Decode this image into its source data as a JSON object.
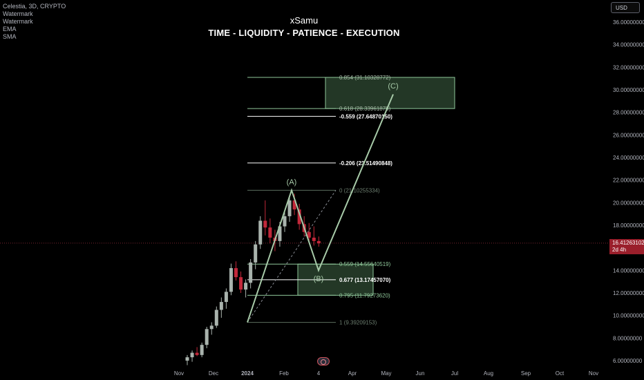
{
  "legend": {
    "symbol": "Celestia, 3D, CRYPTO",
    "items": [
      "Watermark",
      "Watermark",
      "EMA",
      "SMA"
    ]
  },
  "header": {
    "author": "xSamu",
    "headline": "TIME - LIQUIDITY - PATIENCE - EXECUTION"
  },
  "currency_button": "USD",
  "last_price": {
    "value": "16.41263102",
    "countdown": "2d 4h"
  },
  "colors": {
    "background": "#000000",
    "up": "#a9b3ad",
    "down": "#c2283a",
    "fib": "#8fc79a",
    "zone_fill": "#2f4a33",
    "price_tag": "#9a1f2b"
  },
  "chart_data": {
    "type": "candlestick",
    "x_ticks": [
      "Nov",
      "Dec",
      "2024",
      "Feb",
      "4",
      "Apr",
      "May",
      "Jun",
      "Jul",
      "Aug",
      "Sep",
      "Oct",
      "Nov"
    ],
    "y_ticks": [
      "6.00000000",
      "8.00000000",
      "10.00000000",
      "12.00000000",
      "14.00000000",
      "16.00000000",
      "18.00000000",
      "20.00000000",
      "22.00000000",
      "24.00000000",
      "26.00000000",
      "28.00000000",
      "30.00000000",
      "32.00000000",
      "34.00000000",
      "36.00000000"
    ],
    "ylim": [
      5.5,
      36.6
    ],
    "candles_ohlc": [
      [
        6.0,
        6.5,
        5.6,
        6.3
      ],
      [
        6.3,
        6.9,
        5.9,
        6.7
      ],
      [
        6.7,
        7.2,
        6.4,
        6.5
      ],
      [
        6.5,
        7.6,
        6.3,
        7.4
      ],
      [
        7.4,
        9.0,
        7.1,
        8.8
      ],
      [
        8.8,
        9.4,
        8.3,
        9.1
      ],
      [
        9.1,
        10.8,
        8.9,
        10.5
      ],
      [
        10.5,
        11.6,
        9.8,
        11.2
      ],
      [
        11.2,
        12.4,
        10.6,
        12.1
      ],
      [
        12.1,
        14.6,
        11.8,
        14.2
      ],
      [
        14.2,
        14.8,
        13.1,
        13.4
      ],
      [
        13.4,
        13.9,
        12.0,
        12.3
      ],
      [
        12.3,
        13.2,
        11.6,
        12.9
      ],
      [
        12.9,
        15.0,
        12.4,
        14.7
      ],
      [
        14.7,
        16.6,
        14.1,
        16.3
      ],
      [
        16.3,
        18.8,
        15.9,
        18.4
      ],
      [
        18.4,
        20.2,
        17.1,
        17.8
      ],
      [
        17.8,
        18.6,
        16.4,
        16.9
      ],
      [
        16.9,
        17.6,
        15.7,
        16.6
      ],
      [
        16.6,
        18.3,
        16.1,
        17.9
      ],
      [
        17.9,
        19.2,
        17.4,
        18.8
      ],
      [
        18.8,
        20.5,
        18.3,
        20.2
      ],
      [
        20.2,
        20.8,
        18.9,
        19.4
      ],
      [
        19.4,
        19.9,
        17.6,
        18.1
      ],
      [
        18.1,
        18.8,
        17.0,
        17.4
      ],
      [
        17.4,
        18.2,
        16.4,
        16.9
      ],
      [
        16.9,
        17.9,
        16.2,
        16.6
      ],
      [
        16.6,
        17.0,
        16.1,
        16.4
      ]
    ],
    "annotations": {
      "waves": [
        {
          "label": "(A)",
          "y": 21.1
        },
        {
          "label": "(B)",
          "y": 14.0
        },
        {
          "label": "(C)",
          "y": 29.6
        }
      ],
      "fib_levels": [
        {
          "label": "0.854 (31.10328772)",
          "value": 31.10328772
        },
        {
          "label": "0.618 (28.33961878)",
          "value": 28.33961878
        },
        {
          "label": "-0.559 (27.64870150)",
          "value": 27.6487015
        },
        {
          "label": "-0.206 (23.51490848)",
          "value": 23.51490848
        },
        {
          "label": "0 (21.10255334)",
          "value": 21.10255334
        },
        {
          "label": "0.559 (14.55640519)",
          "value": 14.55640519
        },
        {
          "label": "0.677 (13.17457070)",
          "value": 13.1745707
        },
        {
          "label": "0.795 (11.79273620)",
          "value": 11.7927362
        },
        {
          "label": "1 (9.39209153)",
          "value": 9.39209153
        }
      ],
      "zones": [
        {
          "name": "target-zone",
          "from": 28.33961878,
          "to": 31.10328772
        },
        {
          "name": "buy-zone",
          "from": 11.7927362,
          "to": 14.55640519
        }
      ]
    }
  }
}
